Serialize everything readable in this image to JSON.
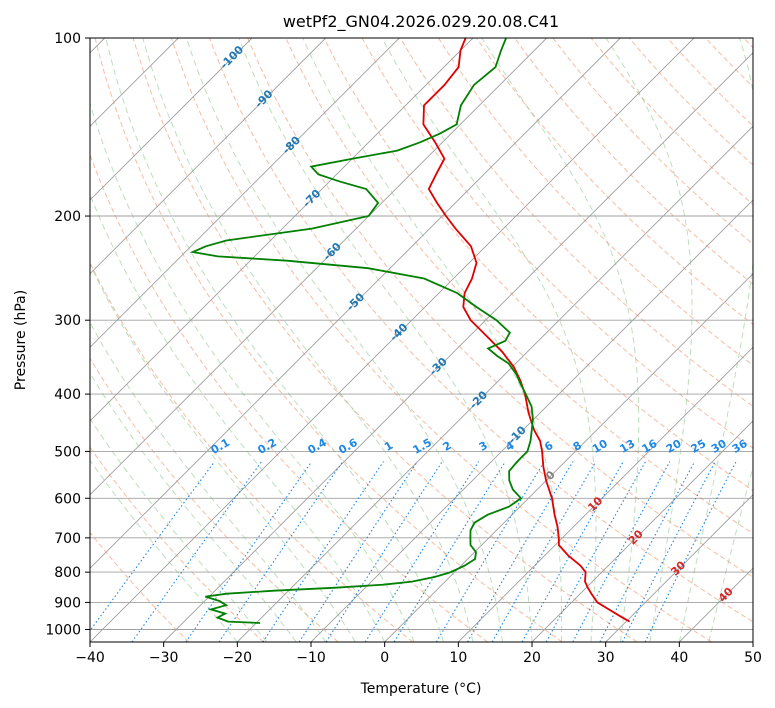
{
  "chart_data": {
    "type": "line",
    "title": "wetPf2_GN04.2026.029.20.08.C41",
    "xlabel": "Temperature (°C)",
    "ylabel": "Pressure (hPa)",
    "xlim": [
      -40,
      50
    ],
    "ylim": [
      1050,
      100
    ],
    "y_scale": "log",
    "skew": "45-degree skewed isotherms",
    "x_ticks": [
      "−40",
      "−30",
      "−20",
      "−10",
      "0",
      "10",
      "20",
      "30",
      "40",
      "50"
    ],
    "y_ticks": [
      "1000",
      "900",
      "800",
      "700",
      "600",
      "500",
      "400",
      "300",
      "200",
      "100"
    ],
    "grid": true,
    "series": [
      {
        "color": "#e00000",
        "points": [
          {
            "p": 970,
            "t": 30.5
          },
          {
            "p": 950,
            "t": 28.5
          },
          {
            "p": 925,
            "t": 26.0
          },
          {
            "p": 900,
            "t": 23.5
          },
          {
            "p": 870,
            "t": 21.5
          },
          {
            "p": 850,
            "t": 20.2
          },
          {
            "p": 830,
            "t": 19.0
          },
          {
            "p": 800,
            "t": 17.8
          },
          {
            "p": 780,
            "t": 16.2
          },
          {
            "p": 750,
            "t": 13.2
          },
          {
            "p": 720,
            "t": 10.5
          },
          {
            "p": 700,
            "t": 9.5
          },
          {
            "p": 670,
            "t": 7.8
          },
          {
            "p": 640,
            "t": 5.8
          },
          {
            "p": 600,
            "t": 3.2
          },
          {
            "p": 560,
            "t": 0.0
          },
          {
            "p": 530,
            "t": -2.3
          },
          {
            "p": 500,
            "t": -4.5
          },
          {
            "p": 480,
            "t": -6.2
          },
          {
            "p": 460,
            "t": -8.5
          },
          {
            "p": 430,
            "t": -11.6
          },
          {
            "p": 400,
            "t": -14.6
          },
          {
            "p": 380,
            "t": -17.0
          },
          {
            "p": 360,
            "t": -19.8
          },
          {
            "p": 340,
            "t": -23.3
          },
          {
            "p": 320,
            "t": -27.5
          },
          {
            "p": 300,
            "t": -32.0
          },
          {
            "p": 285,
            "t": -34.8
          },
          {
            "p": 270,
            "t": -36.5
          },
          {
            "p": 255,
            "t": -37.5
          },
          {
            "p": 240,
            "t": -39.0
          },
          {
            "p": 225,
            "t": -42.0
          },
          {
            "p": 210,
            "t": -46.5
          },
          {
            "p": 200,
            "t": -49.5
          },
          {
            "p": 190,
            "t": -52.5
          },
          {
            "p": 180,
            "t": -55.5
          },
          {
            "p": 170,
            "t": -56.5
          },
          {
            "p": 160,
            "t": -57.5
          },
          {
            "p": 150,
            "t": -61.0
          },
          {
            "p": 140,
            "t": -65.0
          },
          {
            "p": 130,
            "t": -67.5
          },
          {
            "p": 120,
            "t": -67.5
          },
          {
            "p": 112,
            "t": -68.0
          },
          {
            "p": 105,
            "t": -70.0
          },
          {
            "p": 100,
            "t": -71.0
          }
        ]
      },
      {
        "color": "#008000",
        "points": [
          {
            "p": 975,
            "t": -19.5
          },
          {
            "p": 970,
            "t": -24.0
          },
          {
            "p": 955,
            "t": -26.0
          },
          {
            "p": 940,
            "t": -25.5
          },
          {
            "p": 925,
            "t": -28.0
          },
          {
            "p": 910,
            "t": -26.5
          },
          {
            "p": 895,
            "t": -28.0
          },
          {
            "p": 880,
            "t": -30.5
          },
          {
            "p": 870,
            "t": -28.0
          },
          {
            "p": 860,
            "t": -22.0
          },
          {
            "p": 850,
            "t": -14.0
          },
          {
            "p": 840,
            "t": -8.0
          },
          {
            "p": 830,
            "t": -4.5
          },
          {
            "p": 815,
            "t": -2.0
          },
          {
            "p": 800,
            "t": -0.5
          },
          {
            "p": 780,
            "t": 0.5
          },
          {
            "p": 760,
            "t": 1.0
          },
          {
            "p": 740,
            "t": 0.2
          },
          {
            "p": 720,
            "t": -1.5
          },
          {
            "p": 700,
            "t": -2.5
          },
          {
            "p": 680,
            "t": -3.5
          },
          {
            "p": 660,
            "t": -4.0
          },
          {
            "p": 640,
            "t": -3.3
          },
          {
            "p": 620,
            "t": -1.5
          },
          {
            "p": 600,
            "t": -1.0
          },
          {
            "p": 580,
            "t": -3.3
          },
          {
            "p": 560,
            "t": -5.0
          },
          {
            "p": 540,
            "t": -6.3
          },
          {
            "p": 520,
            "t": -6.5
          },
          {
            "p": 500,
            "t": -6.5
          },
          {
            "p": 480,
            "t": -7.5
          },
          {
            "p": 460,
            "t": -8.8
          },
          {
            "p": 440,
            "t": -10.2
          },
          {
            "p": 420,
            "t": -12.0
          },
          {
            "p": 400,
            "t": -14.5
          },
          {
            "p": 385,
            "t": -16.5
          },
          {
            "p": 370,
            "t": -18.5
          },
          {
            "p": 355,
            "t": -21.0
          },
          {
            "p": 345,
            "t": -23.5
          },
          {
            "p": 335,
            "t": -25.8
          },
          {
            "p": 325,
            "t": -24.5
          },
          {
            "p": 315,
            "t": -25.0
          },
          {
            "p": 300,
            "t": -28.5
          },
          {
            "p": 285,
            "t": -33.0
          },
          {
            "p": 270,
            "t": -37.5
          },
          {
            "p": 255,
            "t": -44.0
          },
          {
            "p": 245,
            "t": -53.0
          },
          {
            "p": 238,
            "t": -65.0
          },
          {
            "p": 234,
            "t": -75.0
          },
          {
            "p": 230,
            "t": -79.0
          },
          {
            "p": 225,
            "t": -78.0
          },
          {
            "p": 220,
            "t": -76.0
          },
          {
            "p": 210,
            "t": -66.0
          },
          {
            "p": 200,
            "t": -60.0
          },
          {
            "p": 190,
            "t": -60.5
          },
          {
            "p": 180,
            "t": -64.0
          },
          {
            "p": 175,
            "t": -68.5
          },
          {
            "p": 170,
            "t": -72.5
          },
          {
            "p": 165,
            "t": -74.5
          },
          {
            "p": 160,
            "t": -70.0
          },
          {
            "p": 155,
            "t": -65.0
          },
          {
            "p": 150,
            "t": -63.0
          },
          {
            "p": 145,
            "t": -61.5
          },
          {
            "p": 140,
            "t": -60.5
          },
          {
            "p": 130,
            "t": -62.5
          },
          {
            "p": 120,
            "t": -63.5
          },
          {
            "p": 112,
            "t": -63.0
          },
          {
            "p": 105,
            "t": -64.5
          },
          {
            "p": 100,
            "t": -65.5
          }
        ]
      }
    ],
    "isotherm_labels": [
      {
        "text": "-100",
        "t": -100,
        "p": 108,
        "color": "#1f77b4"
      },
      {
        "text": "-90",
        "t": -90,
        "p": 127,
        "color": "#1f77b4"
      },
      {
        "text": "-80",
        "t": -80,
        "p": 152,
        "color": "#1f77b4"
      },
      {
        "text": "-70",
        "t": -70,
        "p": 187,
        "color": "#1f77b4"
      },
      {
        "text": "-60",
        "t": -60,
        "p": 230,
        "color": "#1f77b4"
      },
      {
        "text": "-50",
        "t": -50,
        "p": 280,
        "color": "#1f77b4"
      },
      {
        "text": "-40",
        "t": -40,
        "p": 315,
        "color": "#1f77b4"
      },
      {
        "text": "-30",
        "t": -30,
        "p": 360,
        "color": "#1f77b4"
      },
      {
        "text": "-20",
        "t": -20,
        "p": 410,
        "color": "#1f77b4"
      },
      {
        "text": "-10",
        "t": -10,
        "p": 470,
        "color": "#1f77b4"
      },
      {
        "text": "0",
        "t": 0,
        "p": 550,
        "color": "#808080"
      },
      {
        "text": "10",
        "t": 10,
        "p": 615,
        "color": "#d62728"
      },
      {
        "text": "20",
        "t": 20,
        "p": 700,
        "color": "#d62728"
      },
      {
        "text": "30",
        "t": 30,
        "p": 790,
        "color": "#d62728"
      },
      {
        "text": "40",
        "t": 40,
        "p": 875,
        "color": "#d62728"
      }
    ],
    "mixing_ratio_labels": [
      "0.1",
      "0.2",
      "0.4",
      "0.6",
      "1",
      "1.5",
      "2",
      "3",
      "4",
      "6",
      "8",
      "10",
      "13",
      "16",
      "20",
      "25",
      "30",
      "36"
    ]
  }
}
